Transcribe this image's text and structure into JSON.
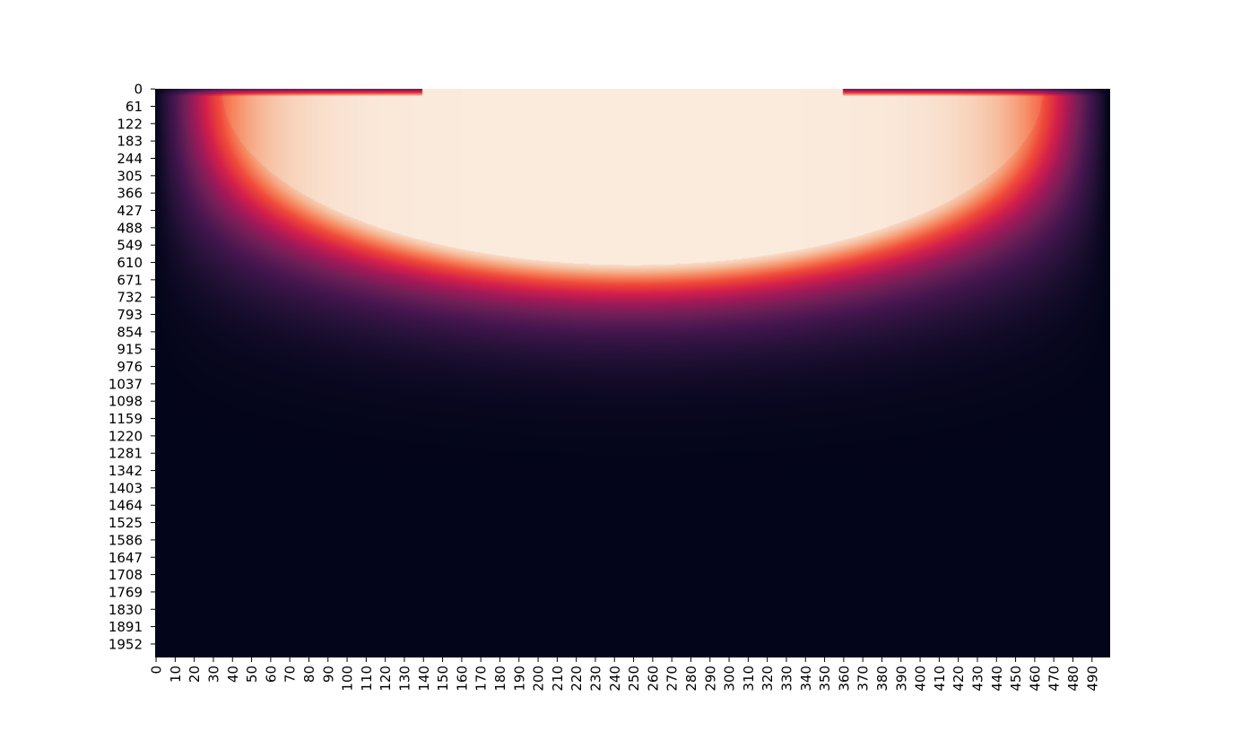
{
  "chart_data": {
    "type": "heatmap",
    "title": "",
    "xlabel": "",
    "ylabel": "",
    "colormap": "rocket",
    "colorbar": false,
    "grid": false,
    "n_cols": 500,
    "n_rows": 2000,
    "x_tick_labels": [
      "0",
      "10",
      "20",
      "30",
      "40",
      "50",
      "60",
      "70",
      "80",
      "90",
      "100",
      "110",
      "120",
      "130",
      "140",
      "150",
      "160",
      "170",
      "180",
      "190",
      "200",
      "210",
      "220",
      "230",
      "240",
      "250",
      "260",
      "270",
      "280",
      "290",
      "300",
      "310",
      "320",
      "330",
      "340",
      "350",
      "360",
      "370",
      "380",
      "390",
      "400",
      "410",
      "420",
      "430",
      "440",
      "450",
      "460",
      "470",
      "480",
      "490"
    ],
    "y_tick_labels": [
      "0",
      "61",
      "122",
      "183",
      "244",
      "305",
      "366",
      "427",
      "488",
      "549",
      "610",
      "671",
      "732",
      "793",
      "854",
      "915",
      "976",
      "1037",
      "1098",
      "1159",
      "1220",
      "1281",
      "1342",
      "1403",
      "1464",
      "1525",
      "1586",
      "1647",
      "1708",
      "1769",
      "1830",
      "1891",
      "1952"
    ],
    "description_of_values": "Saturated (maximum) region is a half-ellipse anchored at the top edge spanning roughly columns 140-360 at row 0 and extending to about row 620 at column 250; values fall off outward and downward to near-zero at left, right and bottom edges."
  }
}
